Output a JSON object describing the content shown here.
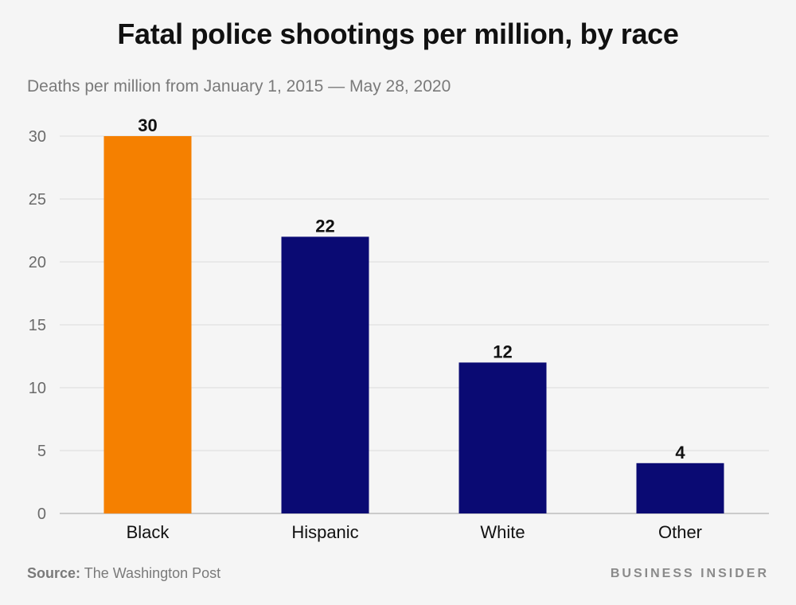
{
  "title": "Fatal police shootings per million, by race",
  "subtitle": "Deaths per million from January 1, 2015 — May 28, 2020",
  "source": {
    "label": "Source:",
    "text": "The Washington Post"
  },
  "brand": "BUSINESS INSIDER",
  "colors": {
    "highlight": "#f58000",
    "default": "#0a0a73",
    "grid": "#dcdcdc",
    "tick_text": "#6b6b6b",
    "value_text": "#111111",
    "category_text": "#111111"
  },
  "chart_data": {
    "type": "bar",
    "categories": [
      "Black",
      "Hispanic",
      "White",
      "Other"
    ],
    "values": [
      30,
      22,
      12,
      4
    ],
    "data_labels": [
      "30",
      "22",
      "12",
      "4"
    ],
    "highlight_index": 0,
    "title": "Fatal police shootings per million, by race",
    "subtitle": "Deaths per million from January 1, 2015 — May 28, 2020",
    "xlabel": "",
    "ylabel": "",
    "ylim": [
      0,
      30
    ],
    "yticks": [
      0,
      5,
      10,
      15,
      20,
      25,
      30
    ],
    "grid": true,
    "legend": "none"
  }
}
